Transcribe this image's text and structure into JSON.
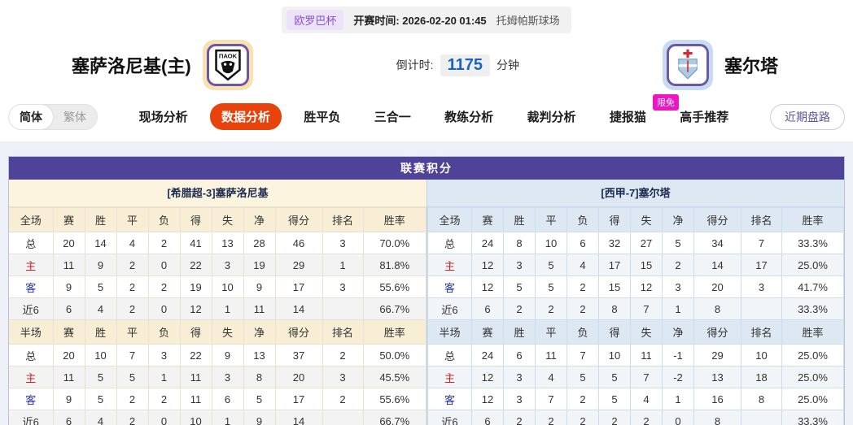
{
  "header": {
    "league": "欧罗巴杯",
    "kickoff_label": "开赛时间:",
    "kickoff_time": "2026-02-20 01:45",
    "stadium": "托姆帕斯球场",
    "home_team": "塞萨洛尼基(主)",
    "away_team": "塞尔塔",
    "home_logo_text": "ΠΑΟΚ",
    "countdown_label": "倒计时:",
    "countdown_value": "1175",
    "countdown_unit": "分钟"
  },
  "nav": {
    "lang_simplified": "简体",
    "lang_traditional": "繁体",
    "tabs": [
      {
        "label": "现场分析"
      },
      {
        "label": "数据分析",
        "active": true
      },
      {
        "label": "胜平负"
      },
      {
        "label": "三合一"
      },
      {
        "label": "教练分析"
      },
      {
        "label": "裁判分析"
      },
      {
        "label": "捷报猫",
        "badge": "限免"
      },
      {
        "label": "高手推荐"
      }
    ],
    "right_button": "近期盘路"
  },
  "colors": {
    "accent_purple": "#4e4299",
    "active_tab_orange": "#e8430d",
    "badge_pink": "#ef14c4",
    "countdown_blue": "#1a63c4",
    "home_theme": "#fdf4df",
    "away_theme": "#dde8f2",
    "home_row_red": "#cc2222",
    "away_row_blue": "#2233cc"
  },
  "table": {
    "title": "联赛积分",
    "columns": [
      "赛",
      "胜",
      "平",
      "负",
      "得",
      "失",
      "净",
      "得分",
      "排名",
      "胜率"
    ],
    "home": {
      "header": "[希腊超-3]塞萨洛尼基",
      "full": {
        "scope": "全场",
        "rows": [
          {
            "label": "总",
            "values": [
              "20",
              "14",
              "4",
              "2",
              "41",
              "13",
              "28",
              "46",
              "3",
              "70.0%"
            ]
          },
          {
            "label": "主",
            "values": [
              "11",
              "9",
              "2",
              "0",
              "22",
              "3",
              "19",
              "29",
              "1",
              "81.8%"
            ]
          },
          {
            "label": "客",
            "values": [
              "9",
              "5",
              "2",
              "2",
              "19",
              "10",
              "9",
              "17",
              "3",
              "55.6%"
            ]
          },
          {
            "label": "近6",
            "values": [
              "6",
              "4",
              "2",
              "0",
              "12",
              "1",
              "11",
              "14",
              "",
              "66.7%"
            ]
          }
        ]
      },
      "half": {
        "scope": "半场",
        "rows": [
          {
            "label": "总",
            "values": [
              "20",
              "10",
              "7",
              "3",
              "22",
              "9",
              "13",
              "37",
              "2",
              "50.0%"
            ]
          },
          {
            "label": "主",
            "values": [
              "11",
              "5",
              "5",
              "1",
              "11",
              "3",
              "8",
              "20",
              "3",
              "45.5%"
            ]
          },
          {
            "label": "客",
            "values": [
              "9",
              "5",
              "2",
              "2",
              "11",
              "6",
              "5",
              "17",
              "2",
              "55.6%"
            ]
          },
          {
            "label": "近6",
            "values": [
              "6",
              "4",
              "2",
              "0",
              "10",
              "1",
              "9",
              "14",
              "",
              "66.7%"
            ]
          }
        ]
      }
    },
    "away": {
      "header": "[西甲-7]塞尔塔",
      "full": {
        "scope": "全场",
        "rows": [
          {
            "label": "总",
            "values": [
              "24",
              "8",
              "10",
              "6",
              "32",
              "27",
              "5",
              "34",
              "7",
              "33.3%"
            ]
          },
          {
            "label": "主",
            "values": [
              "12",
              "3",
              "5",
              "4",
              "17",
              "15",
              "2",
              "14",
              "17",
              "25.0%"
            ]
          },
          {
            "label": "客",
            "values": [
              "12",
              "5",
              "5",
              "2",
              "15",
              "12",
              "3",
              "20",
              "3",
              "41.7%"
            ]
          },
          {
            "label": "近6",
            "values": [
              "6",
              "2",
              "2",
              "2",
              "8",
              "7",
              "1",
              "8",
              "",
              "33.3%"
            ]
          }
        ]
      },
      "half": {
        "scope": "半场",
        "rows": [
          {
            "label": "总",
            "values": [
              "24",
              "6",
              "11",
              "7",
              "10",
              "11",
              "-1",
              "29",
              "10",
              "25.0%"
            ]
          },
          {
            "label": "主",
            "values": [
              "12",
              "3",
              "4",
              "5",
              "5",
              "7",
              "-2",
              "13",
              "18",
              "25.0%"
            ]
          },
          {
            "label": "客",
            "values": [
              "12",
              "3",
              "7",
              "2",
              "5",
              "4",
              "1",
              "16",
              "8",
              "25.0%"
            ]
          },
          {
            "label": "近6",
            "values": [
              "6",
              "2",
              "2",
              "2",
              "2",
              "2",
              "0",
              "8",
              "",
              "33.3%"
            ]
          }
        ]
      }
    }
  }
}
